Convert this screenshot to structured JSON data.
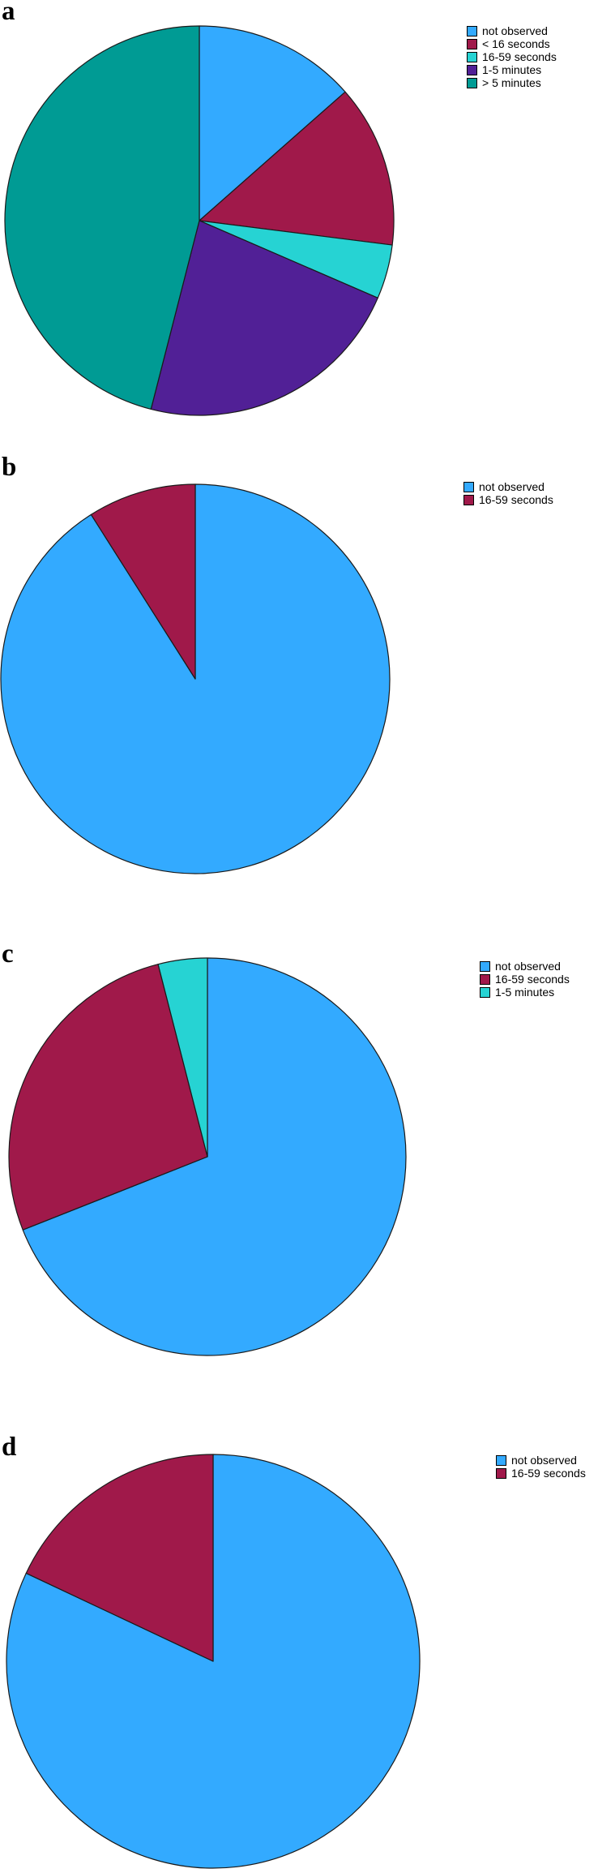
{
  "chart_data": [
    {
      "type": "pie",
      "panel_label": "a",
      "title": "",
      "categories": [
        "not observed",
        "< 16 seconds",
        "16-59 seconds",
        "1-5 minutes",
        "> 5 minutes"
      ],
      "values": [
        13.5,
        13.5,
        4.5,
        22.5,
        46.0
      ],
      "colors": [
        "#33aaff",
        "#a0194a",
        "#26d3d3",
        "#512096",
        "#009b94"
      ],
      "legend": [
        "not observed",
        "< 16 seconds",
        "16-59 seconds",
        "1-5 minutes",
        "> 5 minutes"
      ],
      "legend_position": "top-right",
      "start_angle_deg": 0,
      "direction": "clockwise"
    },
    {
      "type": "pie",
      "panel_label": "b",
      "title": "",
      "categories": [
        "not observed",
        "16-59 seconds"
      ],
      "values": [
        91.0,
        9.0
      ],
      "colors": [
        "#33aaff",
        "#a0194a"
      ],
      "legend": [
        "not observed",
        "16-59 seconds"
      ],
      "legend_position": "top-right",
      "start_angle_deg": 0,
      "direction": "clockwise"
    },
    {
      "type": "pie",
      "panel_label": "c",
      "title": "",
      "categories": [
        "not observed",
        "16-59 seconds",
        "1-5 minutes"
      ],
      "values": [
        69.0,
        27.0,
        4.0
      ],
      "colors": [
        "#33aaff",
        "#a0194a",
        "#26d3d3"
      ],
      "legend": [
        "not observed",
        "16-59 seconds",
        "1-5 minutes"
      ],
      "legend_position": "top-right",
      "start_angle_deg": 0,
      "direction": "clockwise"
    },
    {
      "type": "pie",
      "panel_label": "d",
      "title": "",
      "categories": [
        "not observed",
        "16-59 seconds"
      ],
      "values": [
        82.0,
        18.0
      ],
      "colors": [
        "#33aaff",
        "#a0194a"
      ],
      "legend": [
        "not observed",
        "16-59 seconds"
      ],
      "legend_position": "top-right",
      "start_angle_deg": 0,
      "direction": "clockwise"
    }
  ]
}
